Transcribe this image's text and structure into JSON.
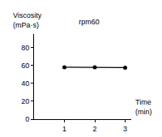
{
  "chart_data": {
    "type": "line",
    "title": "rpm60",
    "x_label": "Time\n(min)",
    "y_label": "Viscosity\n(mPa·s)",
    "x": [
      1,
      2,
      3
    ],
    "values": [
      58,
      58,
      57.5
    ],
    "color": "#000000",
    "marker": "circle",
    "xlim": [
      0,
      3.2
    ],
    "xticks": [
      1,
      2,
      3
    ],
    "ylim": [
      0,
      95
    ],
    "yticks": [
      0,
      20,
      40,
      60,
      80
    ],
    "grid": false
  }
}
